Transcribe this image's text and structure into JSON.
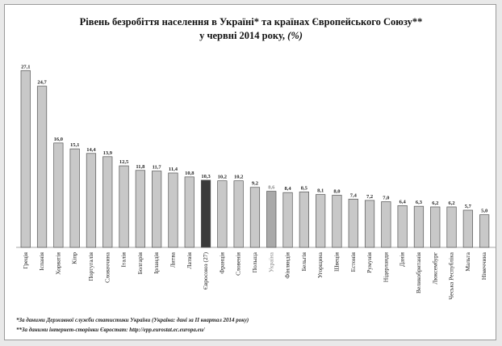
{
  "chart_data": {
    "type": "bar",
    "title": "Рівень безробіття населення в Україні* та країнах Європейського Союзу**",
    "subtitle": "у червні 2014 року,",
    "unit": "(%)",
    "categories": [
      "Греція",
      "Іспанія",
      "Хорватія",
      "Кіпр",
      "Португалія",
      "Словаччина",
      "Італія",
      "Болгарія",
      "Ірландія",
      "Литва",
      "Латвія",
      "Євросоюз (27)",
      "Франція",
      "Словенія",
      "Польща",
      "Україна",
      "Фінляндія",
      "Бельгія",
      "Угорщина",
      "Швеція",
      "Естонія",
      "Румунія",
      "Нідерланди",
      "Данія",
      "Великобританія",
      "Люксембург",
      "Чеська Республіка",
      "Мальта",
      "Німеччина"
    ],
    "values": [
      27.1,
      24.7,
      16.0,
      15.1,
      14.4,
      13.9,
      12.5,
      11.8,
      11.7,
      11.4,
      10.8,
      10.3,
      10.2,
      10.2,
      9.2,
      8.6,
      8.4,
      8.5,
      8.1,
      8.0,
      7.4,
      7.2,
      7.0,
      6.4,
      6.3,
      6.2,
      6.2,
      5.7,
      5.0
    ],
    "value_labels": [
      "27,1",
      "24,7",
      "16,0",
      "15,1",
      "14,4",
      "13,9",
      "12,5",
      "11,8",
      "11,7",
      "11,4",
      "10,8",
      "10,3",
      "10,2",
      "10,2",
      "9,2",
      "8,6",
      "8,4",
      "8,5",
      "8,1",
      "8,0",
      "7,4",
      "7,2",
      "7,0",
      "6,4",
      "6,3",
      "6,2",
      "6,2",
      "5,7",
      "5,0"
    ],
    "highlight": {
      "Євросоюз (27)": "#3a3a3a",
      "Україна": "#a9a9a9"
    },
    "default_color": "#c8c8c8",
    "ylim": [
      0,
      28
    ],
    "grid": false,
    "legend": "none"
  },
  "footnotes": [
    "*За даними  Державної служби статистики України (Україна: дані за II квартал 2014 року)",
    "**За даними інтернет-сторінки Євростат: http://epp.eurostat.ec.europa.eu/"
  ]
}
